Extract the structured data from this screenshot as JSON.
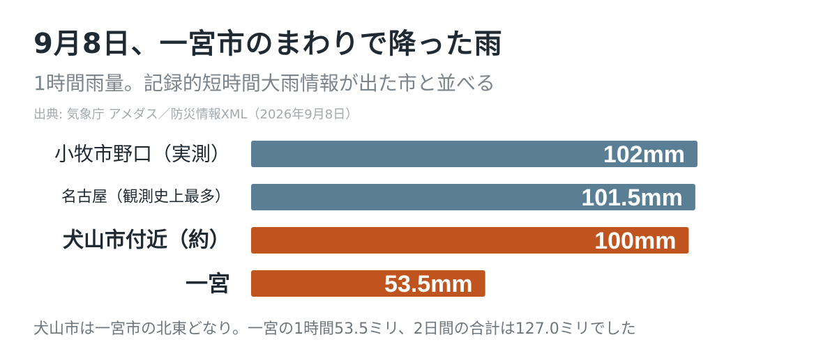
{
  "header": {
    "title": "9月8日、一宮市のまわりで降った雨",
    "subtitle": "1時間雨量。記録的短時間大雨情報が出た市と並べる",
    "source": "出典: 気象庁 アメダス／防災情報XML（2026年9月8日）"
  },
  "footer": {
    "note": "犬山市は一宮市の北東どなり。一宮の1時間53.5ミリ、2日間の合計は127.0ミリでした"
  },
  "colors": {
    "reference": "#5a7f95",
    "focus": "#c0541f"
  },
  "chart_data": {
    "type": "bar",
    "orientation": "horizontal",
    "categories": [
      "小牧市野口（実測）",
      "名古屋（観測史上最多）",
      "犬山市付近（約）",
      "一宮"
    ],
    "values": [
      102,
      101.5,
      100,
      53.5
    ],
    "value_labels": [
      "102mm",
      "101.5mm",
      "100mm",
      "53.5mm"
    ],
    "unit": "mm",
    "emphasis": [
      false,
      false,
      true,
      true
    ],
    "series_color": [
      "reference",
      "reference",
      "focus",
      "focus"
    ],
    "xlim": [
      0,
      102
    ]
  }
}
